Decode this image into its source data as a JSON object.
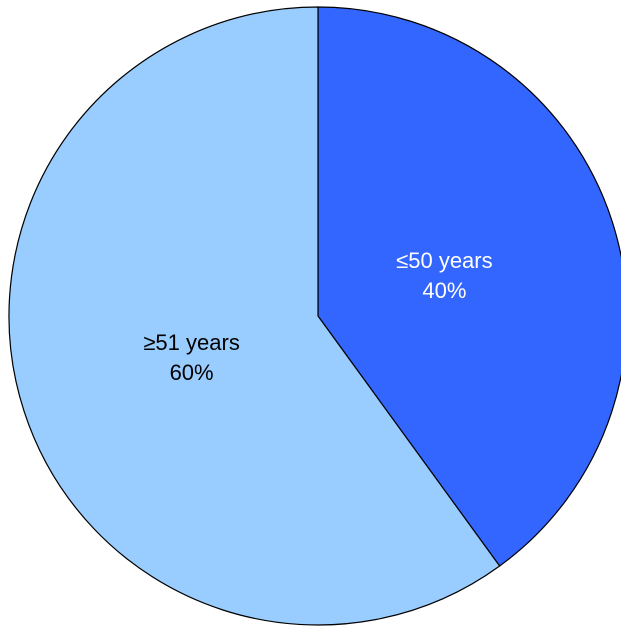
{
  "chart_data": {
    "type": "pie",
    "title": "",
    "start_angle_deg": 0,
    "direction": "clockwise",
    "edge_color": "#000000",
    "slices": [
      {
        "label": "≤50 years",
        "value": 40,
        "value_label": "40%",
        "color": "#3366FF",
        "text_color": "#FFFFFF"
      },
      {
        "label": "≥51 years",
        "value": 60,
        "value_label": "60%",
        "color": "#99CCFF",
        "text_color": "#000000"
      }
    ]
  }
}
